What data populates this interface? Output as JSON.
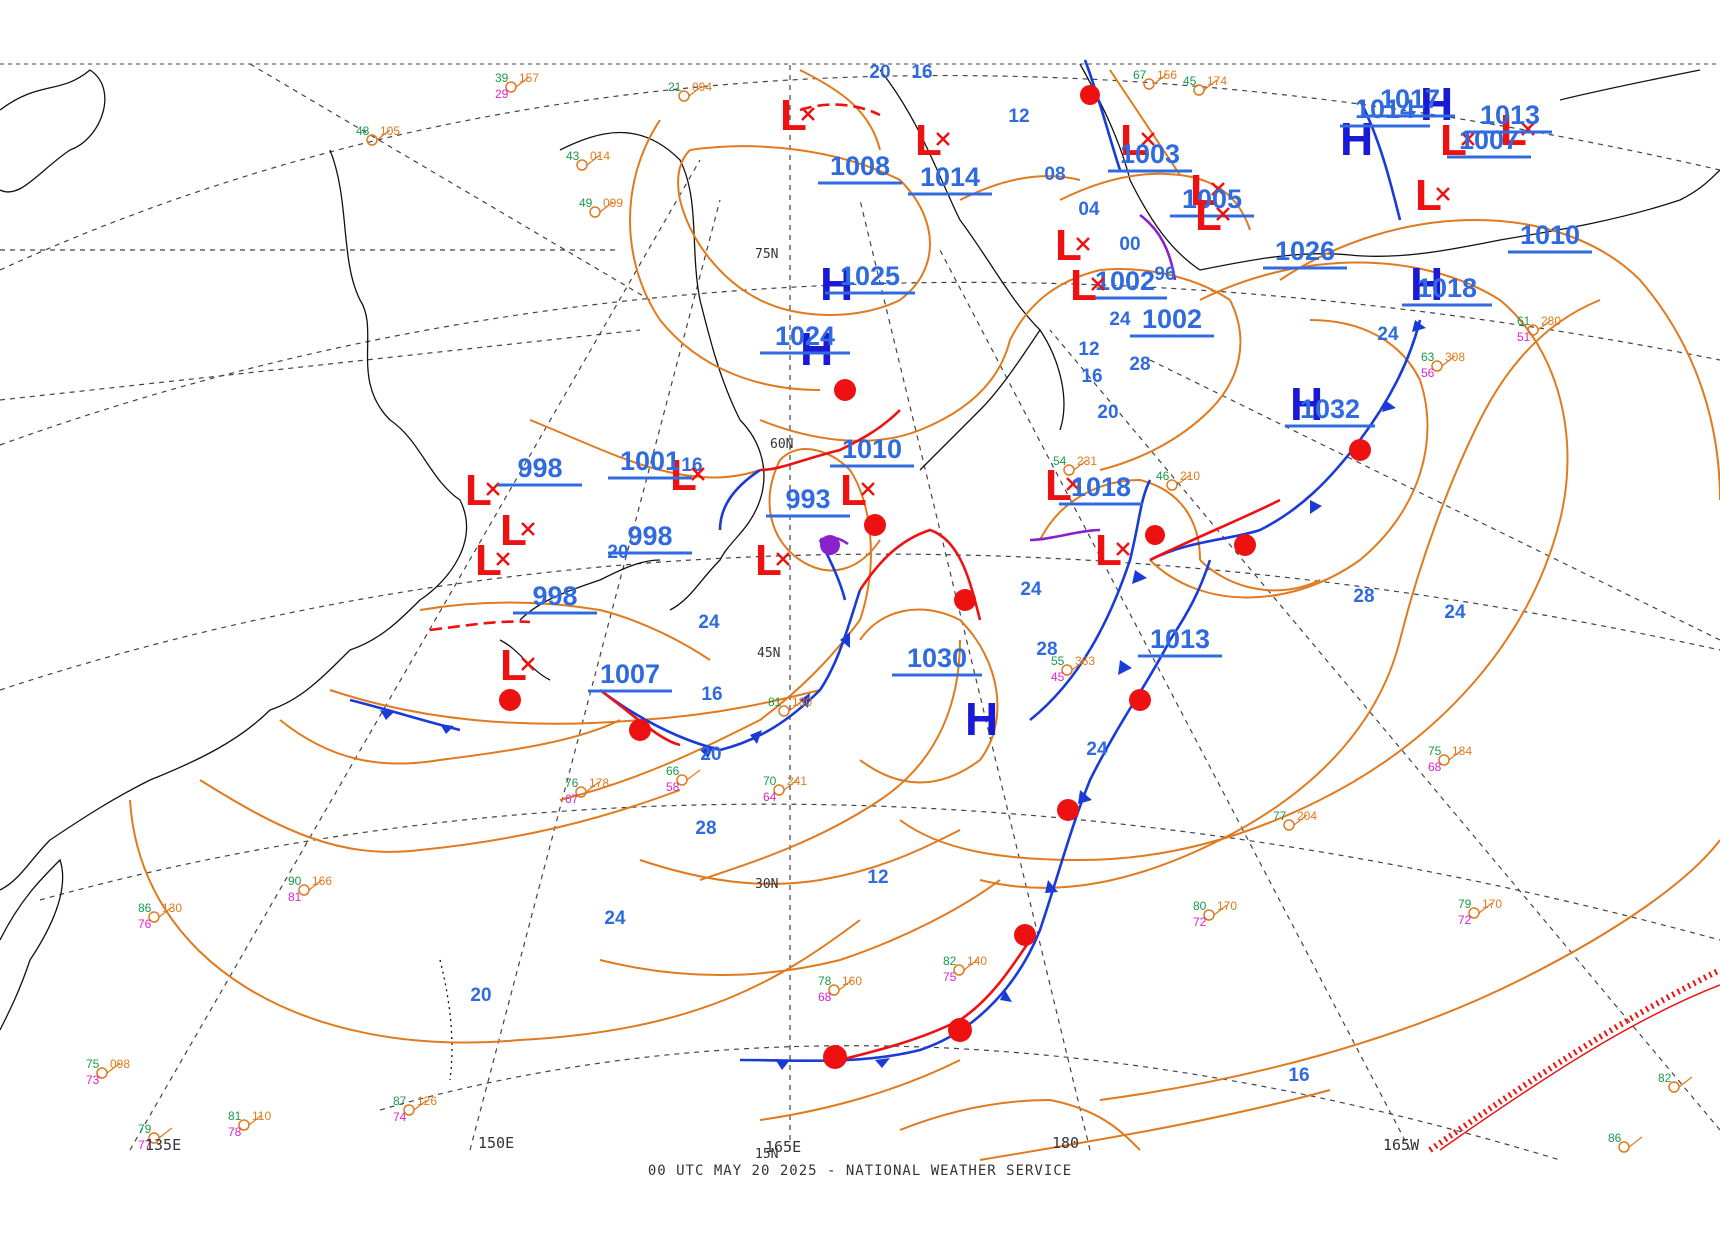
{
  "caption": "00 UTC MAY 20 2025 - NATIONAL WEATHER SERVICE",
  "colors": {
    "isobar": "#e07a1e",
    "graticule": "#444444",
    "coast": "#111111",
    "high": "#1a1ad6",
    "low": "#ee1111",
    "center_value": "#2f6bdf",
    "cold_front": "#1a3bd6",
    "warm_front": "#ee1111",
    "occluded_front": "#8822cc"
  },
  "longitude_labels": [
    "135E",
    "150E",
    "165E",
    "180",
    "165W"
  ],
  "latitude_labels": [
    "75N",
    "60N",
    "45N",
    "30N",
    "15N"
  ],
  "highs": [
    {
      "value": "1025"
    },
    {
      "value": "1024"
    },
    {
      "value": "1032"
    },
    {
      "value": "1030"
    },
    {
      "value": "1014"
    },
    {
      "value": "1017"
    },
    {
      "value": "1018"
    }
  ],
  "lows": [
    {
      "value": "1008"
    },
    {
      "value": "1014"
    },
    {
      "value": "998"
    },
    {
      "value": "1001"
    },
    {
      "value": "998"
    },
    {
      "value": "998"
    },
    {
      "value": "1007"
    },
    {
      "value": "993"
    },
    {
      "value": "1010"
    },
    {
      "value": "1003"
    },
    {
      "value": "1005"
    },
    {
      "value": "1002"
    },
    {
      "value": "1002"
    },
    {
      "value": "1013"
    },
    {
      "value": "1018"
    },
    {
      "value": "1026"
    },
    {
      "value": "1010"
    },
    {
      "value": "1013"
    },
    {
      "value": "1007"
    }
  ],
  "isobar_values": [
    "20",
    "16",
    "12",
    "08",
    "04",
    "00",
    "96",
    "24",
    "28",
    "20",
    "16",
    "12",
    "24",
    "28",
    "24",
    "20",
    "16",
    "24",
    "20",
    "16",
    "12",
    "28",
    "24",
    "20",
    "16",
    "24",
    "28",
    "24"
  ],
  "stations": [
    {
      "t": "75",
      "p": "098",
      "d": "73"
    },
    {
      "t": "87",
      "p": "126",
      "d": "74"
    },
    {
      "t": "81",
      "p": "110",
      "d": "78"
    },
    {
      "t": "79",
      "p": "",
      "d": "77"
    },
    {
      "t": "90",
      "p": "166",
      "d": "81"
    },
    {
      "t": "86",
      "p": "130",
      "d": "76"
    },
    {
      "t": "78",
      "p": "160",
      "d": "68"
    },
    {
      "t": "82",
      "p": "140",
      "d": "75"
    },
    {
      "t": "80",
      "p": "170",
      "d": "72"
    },
    {
      "t": "79",
      "p": "170",
      "d": "72"
    },
    {
      "t": "77",
      "p": "204",
      "d": ""
    },
    {
      "t": "75",
      "p": "184",
      "d": "68"
    },
    {
      "t": "63",
      "p": "308",
      "d": "56"
    },
    {
      "t": "61",
      "p": "280",
      "d": "51"
    },
    {
      "t": "82",
      "p": "",
      "d": ""
    },
    {
      "t": "86",
      "p": "",
      "d": ""
    },
    {
      "t": "55",
      "p": "363",
      "d": "45"
    },
    {
      "t": "46",
      "p": "210",
      "d": ""
    },
    {
      "t": "54",
      "p": "231",
      "d": ""
    },
    {
      "t": "70",
      "p": "241",
      "d": "64"
    },
    {
      "t": "66",
      "p": "",
      "d": "58"
    },
    {
      "t": "76",
      "p": "178",
      "d": "67"
    },
    {
      "t": "81",
      "p": "180",
      "d": ""
    },
    {
      "t": "48",
      "p": "105",
      "d": ""
    },
    {
      "t": "43",
      "p": "014",
      "d": ""
    },
    {
      "t": "21",
      "p": "094",
      "d": ""
    },
    {
      "t": "49",
      "p": "099",
      "d": ""
    },
    {
      "t": "39",
      "p": "157",
      "d": "29"
    },
    {
      "t": "45",
      "p": "174",
      "d": ""
    },
    {
      "t": "67",
      "p": "156",
      "d": ""
    }
  ]
}
